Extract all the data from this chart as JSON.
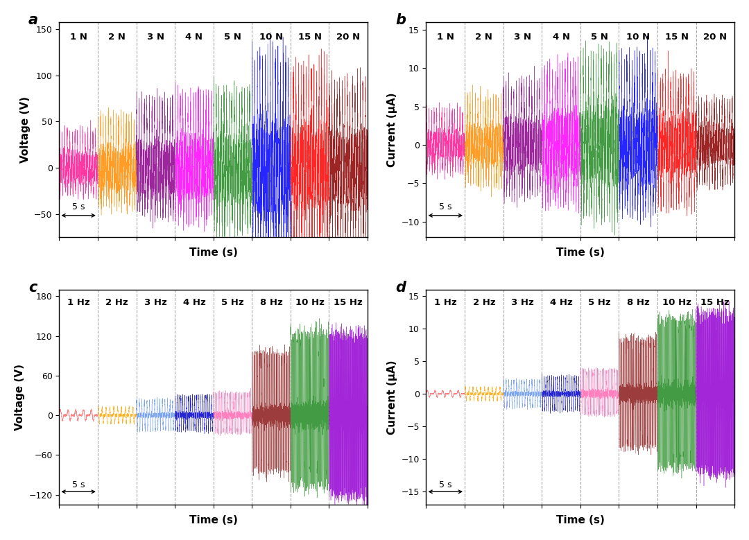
{
  "panel_a": {
    "title": "a",
    "ylabel": "Voltage (V)",
    "xlabel": "Time (s)",
    "ylim": [
      -75,
      158
    ],
    "yticks": [
      -50,
      0,
      50,
      100,
      150
    ],
    "segments": [
      "1 N",
      "2 N",
      "3 N",
      "4 N",
      "5 N",
      "10 N",
      "15 N",
      "20 N"
    ],
    "colors": [
      "#FF1493",
      "#FF8C00",
      "#8B008B",
      "#FF00FF",
      "#228B22",
      "#0000FF",
      "#FF0000",
      "#8B0000"
    ],
    "amplitudes": [
      35,
      50,
      65,
      70,
      75,
      110,
      95,
      80
    ],
    "neg_amplitudes": [
      25,
      35,
      40,
      45,
      55,
      70,
      75,
      65
    ],
    "freq": 3,
    "segment_duration": 5
  },
  "panel_b": {
    "title": "b",
    "ylabel": "Current (μA)",
    "xlabel": "Time (s)",
    "ylim": [
      -12,
      16
    ],
    "yticks": [
      -10,
      -5,
      0,
      5,
      10,
      15
    ],
    "segments": [
      "1 N",
      "2 N",
      "3 N",
      "4 N",
      "5 N",
      "10 N",
      "15 N",
      "20 N"
    ],
    "colors": [
      "#FF1493",
      "#FF8C00",
      "#8B008B",
      "#FF00FF",
      "#228B22",
      "#0000FF",
      "#FF0000",
      "#8B0000"
    ],
    "amplitudes": [
      4.0,
      5.5,
      7.0,
      9.0,
      10.5,
      10.0,
      8.0,
      5.0
    ],
    "neg_amplitudes": [
      3.0,
      4.5,
      5.5,
      6.5,
      8.0,
      7.5,
      7.0,
      4.5
    ],
    "freq": 3,
    "segment_duration": 5
  },
  "panel_c": {
    "title": "c",
    "ylabel": "Voltage (V)",
    "xlabel": "Time (s)",
    "ylim": [
      -135,
      190
    ],
    "yticks": [
      -120,
      -60,
      0,
      60,
      120,
      180
    ],
    "segments": [
      "1 Hz",
      "2 Hz",
      "3 Hz",
      "4 Hz",
      "5 Hz",
      "8 Hz",
      "10 Hz",
      "15 Hz"
    ],
    "colors": [
      "#FF6B6B",
      "#FFA500",
      "#6495ED",
      "#0000CD",
      "#FF69B4",
      "#8B1A1A",
      "#228B22",
      "#9400D3"
    ],
    "amplitudes": [
      8,
      12,
      22,
      28,
      32,
      90,
      120,
      120
    ],
    "neg_amplitudes": [
      8,
      12,
      22,
      22,
      25,
      80,
      100,
      120
    ],
    "freqs": [
      1,
      2,
      3,
      4,
      5,
      8,
      10,
      15
    ],
    "segment_duration": 5
  },
  "panel_d": {
    "title": "d",
    "ylabel": "Current (μA)",
    "xlabel": "Time (s)",
    "ylim": [
      -17,
      16
    ],
    "yticks": [
      -15,
      -10,
      -5,
      0,
      5,
      10,
      15
    ],
    "segments": [
      "1 Hz",
      "2 Hz",
      "3 Hz",
      "4 Hz",
      "5 Hz",
      "8 Hz",
      "10 Hz",
      "15 Hz"
    ],
    "colors": [
      "#FF6B6B",
      "#FFA500",
      "#6495ED",
      "#0000CD",
      "#FF69B4",
      "#8B1A1A",
      "#228B22",
      "#9400D3"
    ],
    "amplitudes": [
      0.5,
      1.0,
      2.0,
      2.5,
      3.5,
      8.0,
      11.0,
      12.0
    ],
    "neg_amplitudes": [
      0.5,
      1.0,
      2.0,
      2.5,
      3.0,
      8.0,
      11.0,
      12.0
    ],
    "freqs": [
      1,
      2,
      3,
      4,
      5,
      8,
      10,
      15
    ],
    "segment_duration": 5
  },
  "background": "#FFFFFF"
}
